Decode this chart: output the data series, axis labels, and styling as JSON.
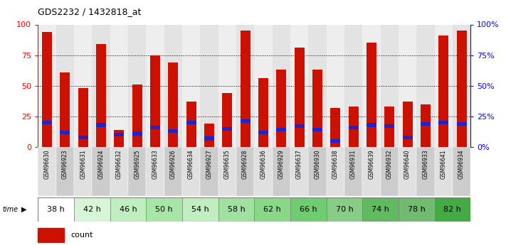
{
  "title": "GDS2232 / 1432818_at",
  "samples": [
    "GSM96630",
    "GSM96923",
    "GSM96631",
    "GSM96924",
    "GSM96632",
    "GSM96925",
    "GSM96633",
    "GSM96926",
    "GSM96634",
    "GSM96927",
    "GSM96635",
    "GSM96928",
    "GSM96636",
    "GSM96929",
    "GSM96637",
    "GSM96930",
    "GSM96638",
    "GSM96931",
    "GSM96639",
    "GSM96932",
    "GSM96640",
    "GSM96933",
    "GSM96641",
    "GSM96934"
  ],
  "time_groups": [
    {
      "label": "38 h",
      "indices": [
        0,
        1
      ]
    },
    {
      "label": "42 h",
      "indices": [
        2,
        3
      ]
    },
    {
      "label": "46 h",
      "indices": [
        4,
        5
      ]
    },
    {
      "label": "50 h",
      "indices": [
        6,
        7
      ]
    },
    {
      "label": "54 h",
      "indices": [
        8,
        9
      ]
    },
    {
      "label": "58 h",
      "indices": [
        10,
        11
      ]
    },
    {
      "label": "62 h",
      "indices": [
        12,
        13
      ]
    },
    {
      "label": "66 h",
      "indices": [
        14,
        15
      ]
    },
    {
      "label": "70 h",
      "indices": [
        16,
        17
      ]
    },
    {
      "label": "74 h",
      "indices": [
        18,
        19
      ]
    },
    {
      "label": "78 h",
      "indices": [
        20,
        21
      ]
    },
    {
      "label": "82 h",
      "indices": [
        22,
        23
      ]
    }
  ],
  "time_group_colors": [
    "#ffffff",
    "#d8f5d8",
    "#c0eec0",
    "#a8e6a8",
    "#c0eec0",
    "#a0e0a0",
    "#88d888",
    "#70cc70",
    "#88cc88",
    "#60bb60",
    "#70bb70",
    "#44aa44"
  ],
  "count_values": [
    94,
    61,
    48,
    84,
    14,
    51,
    75,
    69,
    37,
    19,
    44,
    95,
    56,
    63,
    81,
    63,
    32,
    33,
    85,
    33,
    37,
    35,
    91,
    95
  ],
  "percentile_values": [
    20,
    12,
    8,
    18,
    10,
    11,
    16,
    13,
    20,
    7,
    15,
    21,
    12,
    14,
    17,
    14,
    5,
    16,
    18,
    17,
    8,
    19,
    20,
    19
  ],
  "bar_color": "#cc1100",
  "percentile_color": "#2222cc",
  "ylim": [
    0,
    100
  ],
  "grid_values": [
    25,
    50,
    75
  ],
  "col_bg_even": "#e0e0e0",
  "col_bg_odd": "#cccccc"
}
